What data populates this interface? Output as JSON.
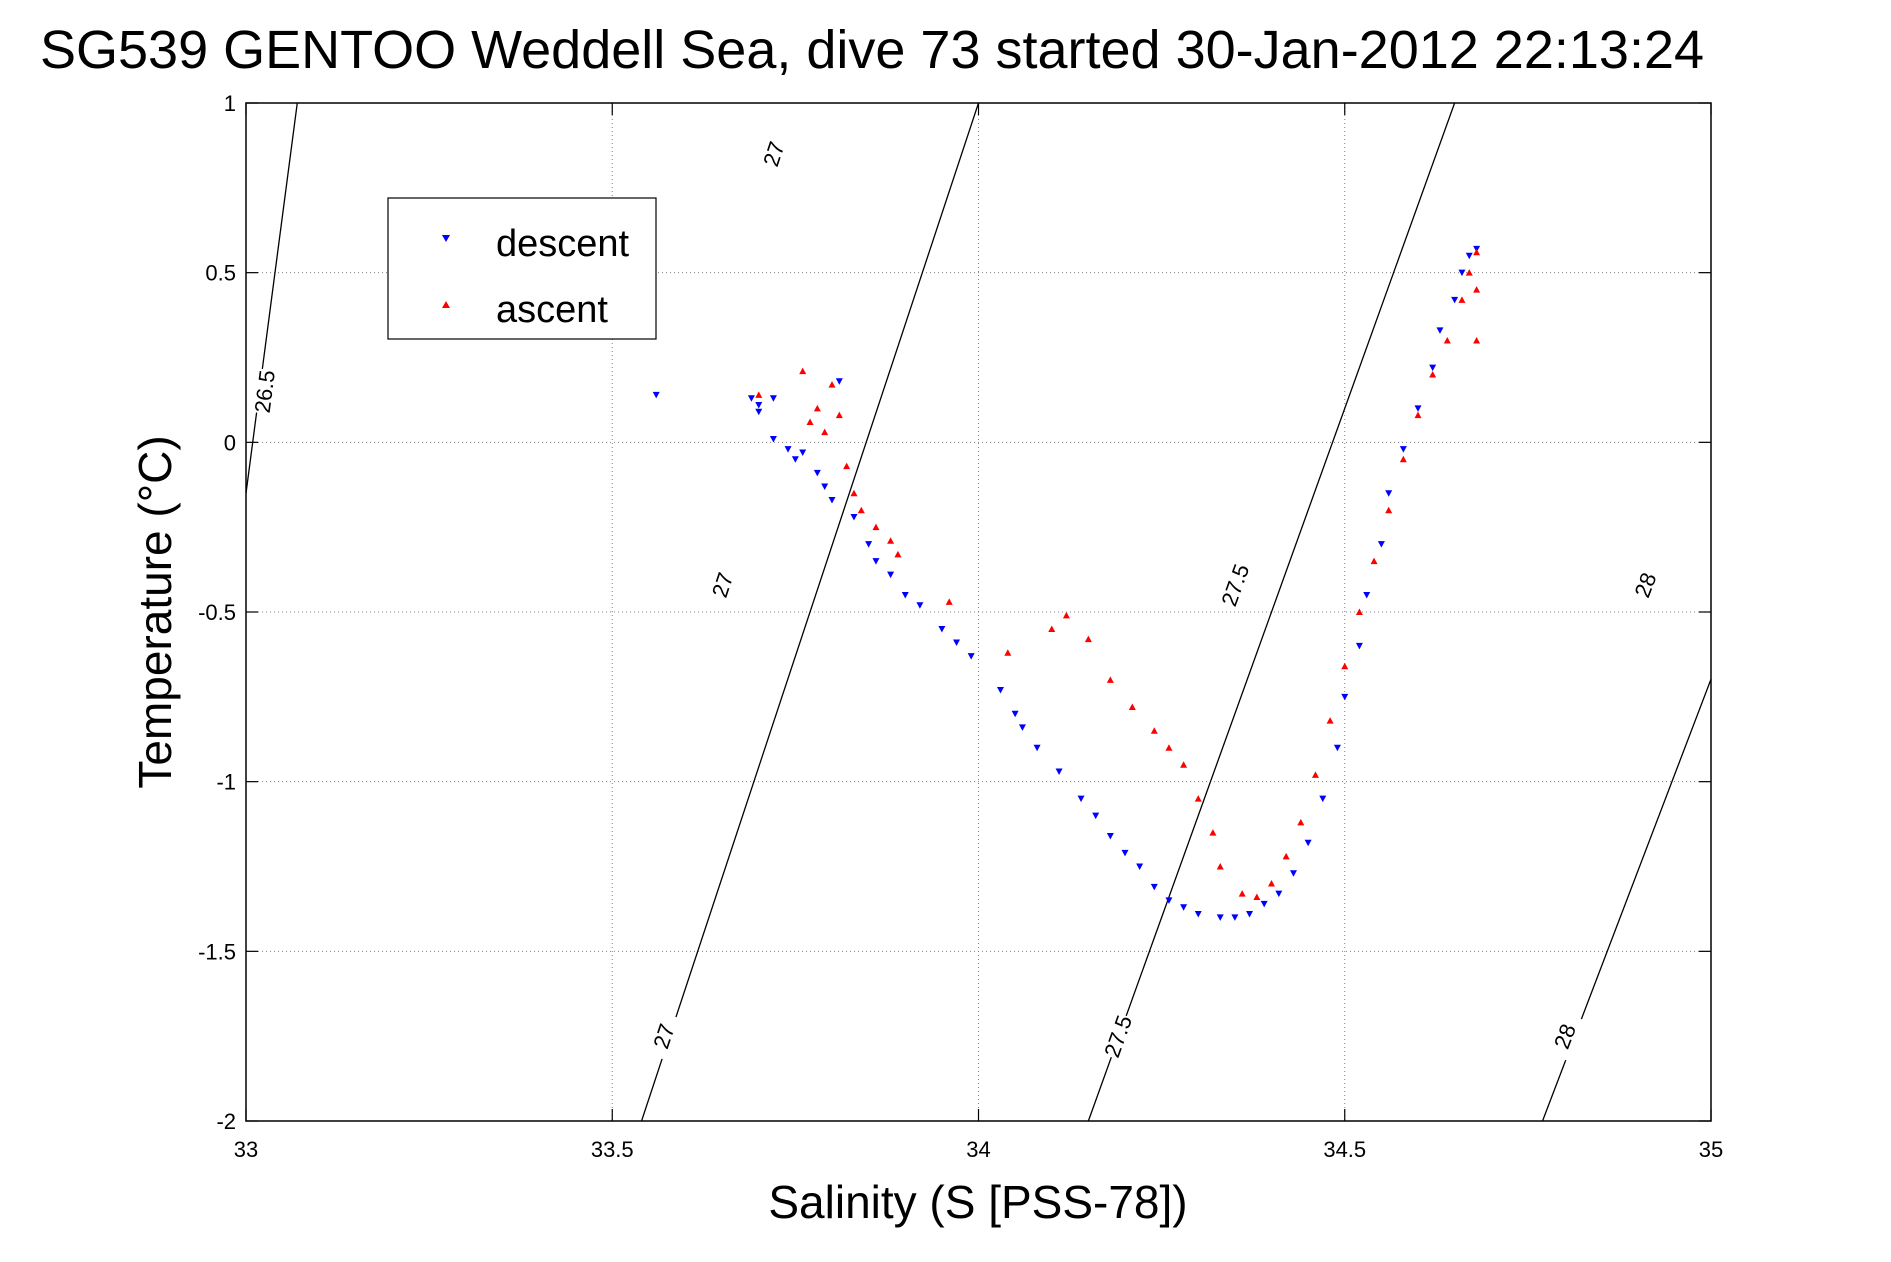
{
  "chart_data": {
    "type": "scatter",
    "title": "SG539 GENTOO Weddell Sea, dive 73 started 30-Jan-2012 22:13:24",
    "xlabel": "Salinity (S [PSS-78])",
    "ylabel": "Temperature (°C)",
    "xlim": [
      33,
      35
    ],
    "ylim": [
      -2,
      1
    ],
    "xticks": [
      33,
      33.5,
      34,
      34.5,
      35
    ],
    "xtick_labels": [
      "33",
      "33.5",
      "34",
      "34.5",
      "35"
    ],
    "yticks": [
      -2,
      -1.5,
      -1,
      -0.5,
      0,
      0.5,
      1
    ],
    "ytick_labels": [
      "-2",
      "-1.5",
      "-1",
      "-0.5",
      "0",
      "0.5",
      "1"
    ],
    "grid": true,
    "legend_position": "top-left",
    "series": [
      {
        "name": "descent",
        "color": "#0000ff",
        "marker": "triangle-down",
        "points": [
          [
            33.56,
            0.14
          ],
          [
            33.69,
            0.13
          ],
          [
            33.7,
            0.11
          ],
          [
            33.7,
            0.09
          ],
          [
            33.72,
            0.13
          ],
          [
            33.72,
            0.01
          ],
          [
            33.74,
            -0.02
          ],
          [
            33.75,
            -0.05
          ],
          [
            33.76,
            -0.03
          ],
          [
            33.78,
            -0.09
          ],
          [
            33.79,
            -0.13
          ],
          [
            33.8,
            -0.17
          ],
          [
            33.81,
            0.18
          ],
          [
            33.83,
            -0.22
          ],
          [
            33.85,
            -0.3
          ],
          [
            33.86,
            -0.35
          ],
          [
            33.88,
            -0.39
          ],
          [
            33.9,
            -0.45
          ],
          [
            33.92,
            -0.48
          ],
          [
            33.95,
            -0.55
          ],
          [
            33.97,
            -0.59
          ],
          [
            33.99,
            -0.63
          ],
          [
            34.03,
            -0.73
          ],
          [
            34.05,
            -0.8
          ],
          [
            34.06,
            -0.84
          ],
          [
            34.08,
            -0.9
          ],
          [
            34.11,
            -0.97
          ],
          [
            34.14,
            -1.05
          ],
          [
            34.16,
            -1.1
          ],
          [
            34.18,
            -1.16
          ],
          [
            34.2,
            -1.21
          ],
          [
            34.22,
            -1.25
          ],
          [
            34.24,
            -1.31
          ],
          [
            34.26,
            -1.35
          ],
          [
            34.28,
            -1.37
          ],
          [
            34.3,
            -1.39
          ],
          [
            34.33,
            -1.4
          ],
          [
            34.35,
            -1.4
          ],
          [
            34.37,
            -1.39
          ],
          [
            34.39,
            -1.36
          ],
          [
            34.41,
            -1.33
          ],
          [
            34.43,
            -1.27
          ],
          [
            34.45,
            -1.18
          ],
          [
            34.47,
            -1.05
          ],
          [
            34.49,
            -0.9
          ],
          [
            34.5,
            -0.75
          ],
          [
            34.52,
            -0.6
          ],
          [
            34.53,
            -0.45
          ],
          [
            34.55,
            -0.3
          ],
          [
            34.56,
            -0.15
          ],
          [
            34.58,
            -0.02
          ],
          [
            34.6,
            0.1
          ],
          [
            34.62,
            0.22
          ],
          [
            34.63,
            0.33
          ],
          [
            34.65,
            0.42
          ],
          [
            34.66,
            0.5
          ],
          [
            34.67,
            0.55
          ],
          [
            34.68,
            0.57
          ]
        ]
      },
      {
        "name": "ascent",
        "color": "#ff0000",
        "marker": "triangle-up",
        "points": [
          [
            33.7,
            0.14
          ],
          [
            33.76,
            0.21
          ],
          [
            33.77,
            0.06
          ],
          [
            33.78,
            0.1
          ],
          [
            33.79,
            0.03
          ],
          [
            33.8,
            0.17
          ],
          [
            33.81,
            0.08
          ],
          [
            33.82,
            -0.07
          ],
          [
            33.83,
            -0.15
          ],
          [
            33.84,
            -0.2
          ],
          [
            33.86,
            -0.25
          ],
          [
            33.88,
            -0.29
          ],
          [
            33.89,
            -0.33
          ],
          [
            33.96,
            -0.47
          ],
          [
            34.04,
            -0.62
          ],
          [
            34.1,
            -0.55
          ],
          [
            34.12,
            -0.51
          ],
          [
            34.15,
            -0.58
          ],
          [
            34.18,
            -0.7
          ],
          [
            34.21,
            -0.78
          ],
          [
            34.24,
            -0.85
          ],
          [
            34.26,
            -0.9
          ],
          [
            34.28,
            -0.95
          ],
          [
            34.3,
            -1.05
          ],
          [
            34.32,
            -1.15
          ],
          [
            34.33,
            -1.25
          ],
          [
            34.36,
            -1.33
          ],
          [
            34.38,
            -1.34
          ],
          [
            34.4,
            -1.3
          ],
          [
            34.42,
            -1.22
          ],
          [
            34.44,
            -1.12
          ],
          [
            34.46,
            -0.98
          ],
          [
            34.48,
            -0.82
          ],
          [
            34.5,
            -0.66
          ],
          [
            34.52,
            -0.5
          ],
          [
            34.54,
            -0.35
          ],
          [
            34.56,
            -0.2
          ],
          [
            34.58,
            -0.05
          ],
          [
            34.6,
            0.08
          ],
          [
            34.62,
            0.2
          ],
          [
            34.64,
            0.3
          ],
          [
            34.66,
            0.42
          ],
          [
            34.67,
            0.5
          ],
          [
            34.68,
            0.56
          ],
          [
            34.68,
            0.45
          ],
          [
            34.68,
            0.3
          ]
        ]
      }
    ],
    "contours": [
      {
        "level": "26.5",
        "points": [
          [
            33,
            -0.15
          ],
          [
            33.07,
            1
          ]
        ],
        "labels": [
          {
            "x": 33.025,
            "y": 0.15
          }
        ]
      },
      {
        "level": "27",
        "points": [
          [
            33.54,
            -2
          ],
          [
            34.0,
            1
          ]
        ],
        "labels": [
          {
            "x": 33.57,
            "y": -1.75
          },
          {
            "x": 33.65,
            "y": -0.42
          },
          {
            "x": 33.72,
            "y": 0.85
          }
        ]
      },
      {
        "level": "27.5",
        "points": [
          [
            34.15,
            -2
          ],
          [
            34.65,
            1
          ]
        ],
        "labels": [
          {
            "x": 34.19,
            "y": -1.75
          },
          {
            "x": 34.35,
            "y": -0.42
          }
        ]
      },
      {
        "level": "28",
        "points": [
          [
            34.77,
            -2
          ],
          [
            35.3,
            1
          ]
        ],
        "labels": [
          {
            "x": 34.8,
            "y": -1.75
          },
          {
            "x": 34.91,
            "y": -0.42
          },
          {
            "x": 35.03,
            "y": 0.85
          }
        ]
      }
    ]
  }
}
